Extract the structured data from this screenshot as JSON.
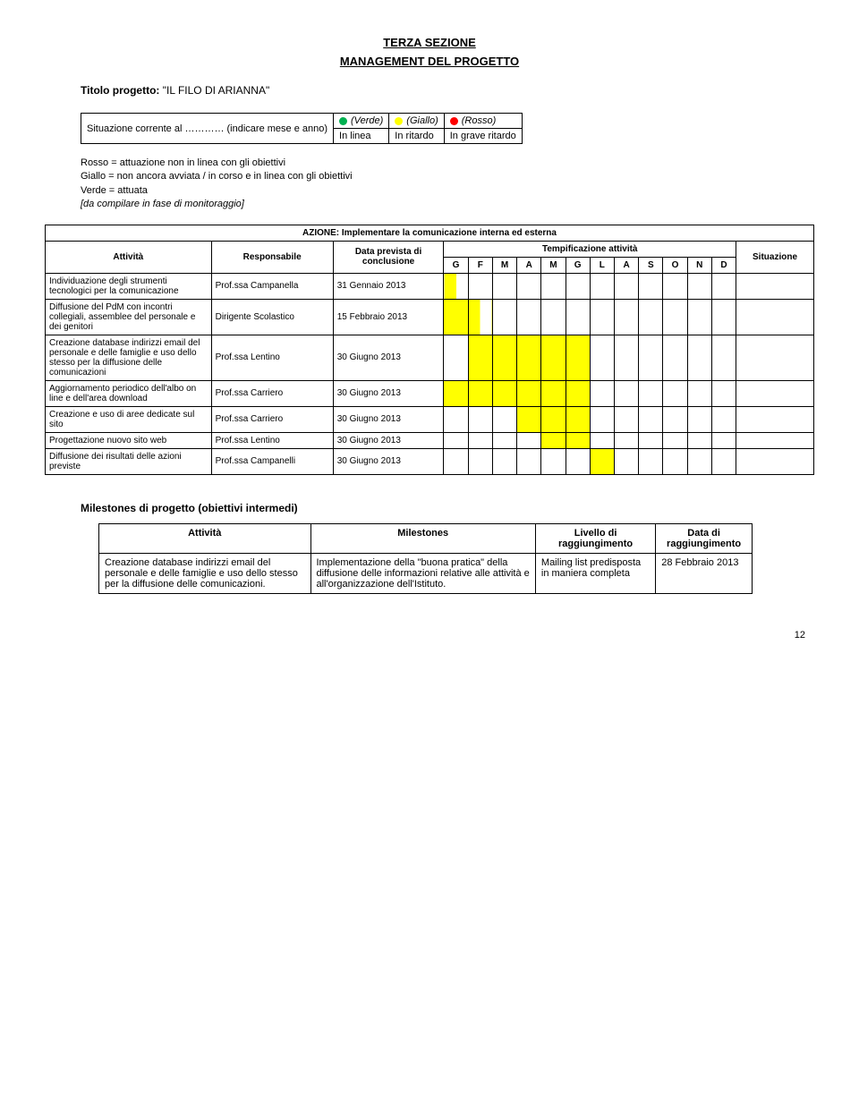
{
  "header": {
    "section": "TERZA SEZIONE",
    "subtitle": "MANAGEMENT DEL PROGETTO",
    "projectLabel": "Titolo progetto:",
    "projectName": "\"IL FILO DI ARIANNA\""
  },
  "statusLine": {
    "left": "Situazione corrente al ………… (indicare mese e anno)",
    "verde": "(Verde)",
    "giallo": "(Giallo)",
    "rosso": "(Rosso)",
    "inlinea": "In linea",
    "inritardo": "In ritardo",
    "ingrave": "In grave ritardo"
  },
  "notes": {
    "l1": "Rosso = attuazione non in linea con gli obiettivi",
    "l2": "Giallo = non ancora avviata / in corso e in linea con gli obiettivi",
    "l3": "Verde = attuata",
    "l4": "[da compilare in fase di monitoraggio]"
  },
  "gantt": {
    "azione": "AZIONE: Implementare la comunicazione interna ed esterna",
    "headers": {
      "attivita": "Attività",
      "responsabile": "Responsabile",
      "dataprev": "Data prevista di conclusione",
      "tempif": "Tempificazione attività",
      "situazione": "Situazione"
    },
    "months": [
      "G",
      "F",
      "M",
      "A",
      "M",
      "G",
      "L",
      "A",
      "S",
      "O",
      "N",
      "D"
    ],
    "rows": [
      {
        "attivita": "Individuazione degli strumenti tecnologici per la comunicazione",
        "resp": "Prof.ssa Campanella",
        "date": "31 Gennaio 2013",
        "bars": [
          "hl",
          "",
          "",
          "",
          "",
          "",
          "",
          "",
          "",
          "",
          "",
          ""
        ]
      },
      {
        "attivita": "Diffusione del PdM con incontri collegiali, assemblee del personale e dei genitori",
        "resp": "Dirigente Scolastico",
        "date": "15 Febbraio 2013",
        "bars": [
          "y",
          "hl",
          "",
          "",
          "",
          "",
          "",
          "",
          "",
          "",
          "",
          ""
        ]
      },
      {
        "attivita": "Creazione database indirizzi email del personale e delle famiglie e uso dello stesso per la diffusione delle comunicazioni",
        "resp": "Prof.ssa Lentino",
        "date": "30 Giugno 2013",
        "bars": [
          "",
          "y",
          "y",
          "y",
          "y",
          "y",
          "",
          "",
          "",
          "",
          "",
          ""
        ]
      },
      {
        "attivita": "Aggiornamento periodico dell'albo on line e dell'area download",
        "resp": "Prof.ssa Carriero",
        "date": "30 Giugno 2013",
        "bars": [
          "y",
          "y",
          "y",
          "y",
          "y",
          "y",
          "",
          "",
          "",
          "",
          "",
          ""
        ]
      },
      {
        "attivita": "Creazione e uso di aree dedicate sul sito",
        "resp": "Prof.ssa Carriero",
        "date": "30 Giugno 2013",
        "bars": [
          "",
          "",
          "",
          "y",
          "y",
          "y",
          "",
          "",
          "",
          "",
          "",
          ""
        ]
      },
      {
        "attivita": "Progettazione nuovo sito web",
        "resp": "Prof.ssa Lentino",
        "date": "30 Giugno 2013",
        "bars": [
          "",
          "",
          "",
          "",
          "y",
          "y",
          "",
          "",
          "",
          "",
          "",
          ""
        ]
      },
      {
        "attivita": "Diffusione dei risultati delle azioni previste",
        "resp": "Prof.ssa Campanelli",
        "date": "30 Giugno 2013",
        "bars": [
          "",
          "",
          "",
          "",
          "",
          "",
          "y",
          "",
          "",
          "",
          "",
          ""
        ]
      }
    ]
  },
  "milestones": {
    "title": "Milestones di progetto (obiettivi intermedi)",
    "headers": {
      "attivita": "Attività",
      "milestones": "Milestones",
      "livello": "Livello di raggiungimento",
      "datadi": "Data di raggiungimento"
    },
    "row": {
      "attivita": "Creazione database indirizzi email del personale e delle famiglie e uso dello stesso per la diffusione delle comunicazioni.",
      "milestones": "Implementazione della \"buona pratica\" della diffusione delle informazioni relative alle attività e all'organizzazione dell'Istituto.",
      "livello": "Mailing list predisposta in maniera completa",
      "datadi": "28 Febbraio 2013"
    }
  },
  "pageNumber": "12",
  "colors": {
    "yellow": "#ffff00",
    "green": "#00b050",
    "red": "#ff0000"
  }
}
